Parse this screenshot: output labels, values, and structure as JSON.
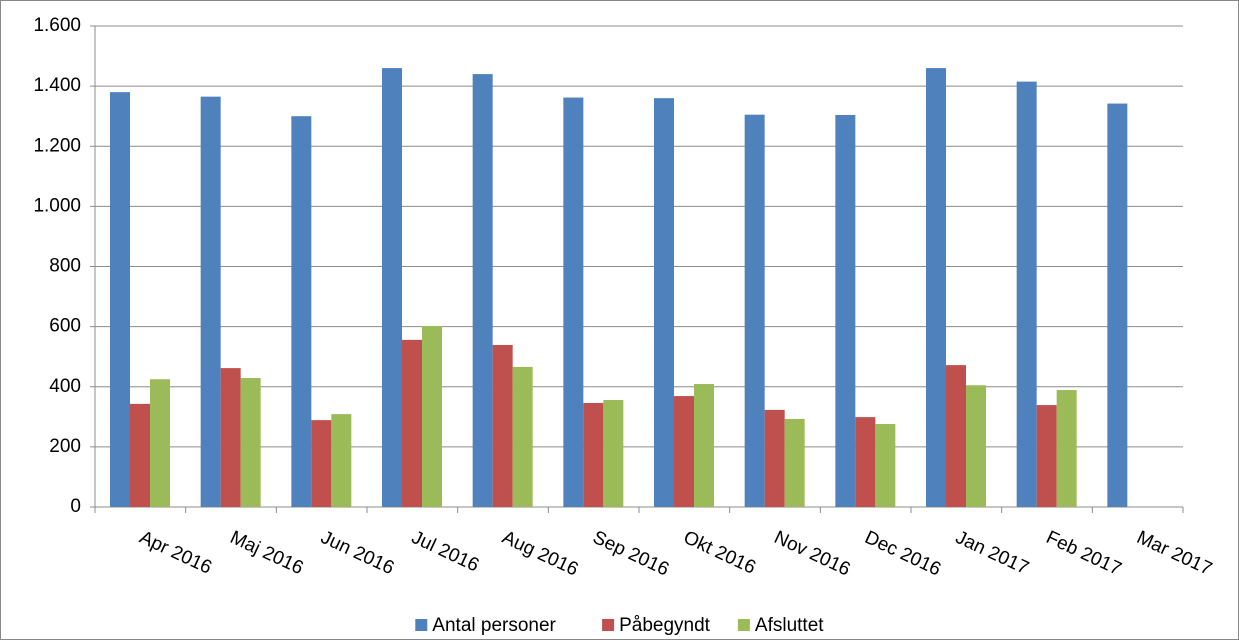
{
  "chart_data": {
    "type": "bar",
    "categories": [
      "Apr 2016",
      "Maj 2016",
      "Jun 2016",
      "Jul 2016",
      "Aug 2016",
      "Sep 2016",
      "Okt 2016",
      "Nov 2016",
      "Dec 2016",
      "Jan 2017",
      "Feb 2017",
      "Mar 2017"
    ],
    "series": [
      {
        "name": "Antal personer",
        "color": "#4f81bd",
        "values": [
          1380,
          1365,
          1300,
          1460,
          1440,
          1362,
          1360,
          1305,
          1304,
          1460,
          1415,
          1342
        ]
      },
      {
        "name": "Påbegyndt",
        "color": "#c0504d",
        "values": [
          343,
          462,
          289,
          556,
          539,
          346,
          369,
          323,
          299,
          472,
          339,
          null
        ]
      },
      {
        "name": "Afsluttet",
        "color": "#9bbb59",
        "values": [
          425,
          429,
          309,
          602,
          466,
          356,
          409,
          293,
          276,
          405,
          389,
          null
        ]
      }
    ],
    "ylim": [
      0,
      1600
    ],
    "yticks": [
      0,
      200,
      400,
      600,
      800,
      {
        "value": 1000,
        "label": "1.000"
      },
      {
        "value": 1200,
        "label": "1.200"
      },
      {
        "value": 1400,
        "label": "1.400"
      },
      {
        "value": 1600,
        "label": "1.600"
      }
    ],
    "grid": true,
    "legend": "bottom"
  }
}
